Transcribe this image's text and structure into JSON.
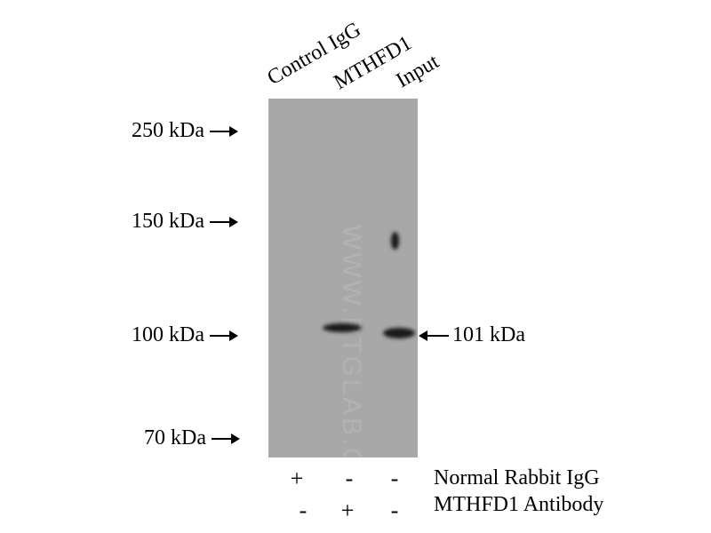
{
  "lanes": [
    "Control IgG",
    "MTHFD1",
    "Input"
  ],
  "markers": [
    {
      "label": "250 kDa"
    },
    {
      "label": "150 kDa"
    },
    {
      "label": "100 kDa"
    },
    {
      "label": "70 kDa"
    }
  ],
  "target_label": "101 kDa",
  "watermark": "WWW.PTGLAB.COM",
  "conditions": [
    {
      "label": "Normal Rabbit IgG",
      "signs": [
        "+",
        "-",
        "-"
      ]
    },
    {
      "label": "MTHFD1 Antibody",
      "signs": [
        "-",
        "+",
        "-"
      ]
    }
  ],
  "colors": {
    "membrane": "#a8a8a8",
    "band": "#1a1a1a"
  }
}
